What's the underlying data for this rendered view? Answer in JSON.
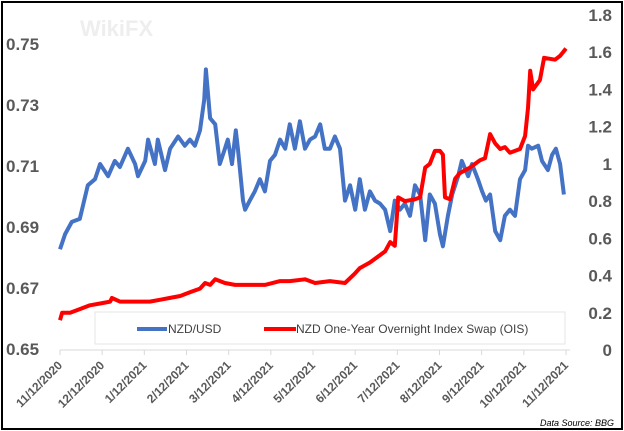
{
  "chart_data": {
    "type": "line",
    "title": "",
    "x_tick_labels": [
      "11/12/2020",
      "12/12/2020",
      "1/12/2021",
      "2/12/2021",
      "3/12/2021",
      "4/12/2021",
      "5/12/2021",
      "6/12/2021",
      "7/12/2021",
      "8/12/2021",
      "9/12/2021",
      "10/12/2021",
      "11/12/2021"
    ],
    "x_unit": "months since 11/12/2020",
    "y_left": {
      "ticks": [
        "0.65",
        "0.67",
        "0.69",
        "0.71",
        "0.73",
        "0.75"
      ],
      "range": [
        0.65,
        0.75
      ]
    },
    "y_right": {
      "ticks": [
        "0",
        "0.2",
        "0.4",
        "0.6",
        "0.8",
        "1",
        "1.2",
        "1.4",
        "1.6",
        "1.8"
      ],
      "range": [
        0,
        1.8
      ]
    },
    "legend_position": "bottom-inside",
    "series": [
      {
        "name": "NZD/USD",
        "axis": "left",
        "color": "#4472C4",
        "x": [
          0,
          0.12,
          0.28,
          0.47,
          0.66,
          0.83,
          0.95,
          1.14,
          1.3,
          1.42,
          1.61,
          1.78,
          1.85,
          2.02,
          2.09,
          2.25,
          2.32,
          2.49,
          2.61,
          2.8,
          2.96,
          3.08,
          3.2,
          3.32,
          3.42,
          3.46,
          3.56,
          3.68,
          3.79,
          3.91,
          3.98,
          4.08,
          4.17,
          4.22,
          4.34,
          4.39,
          4.5,
          4.62,
          4.74,
          4.86,
          4.98,
          5.1,
          5.22,
          5.34,
          5.45,
          5.57,
          5.69,
          5.81,
          5.93,
          6.05,
          6.17,
          6.28,
          6.4,
          6.52,
          6.64,
          6.76,
          6.88,
          7.0,
          7.11,
          7.23,
          7.35,
          7.47,
          7.59,
          7.71,
          7.83,
          7.94,
          8.06,
          8.18,
          8.3,
          8.42,
          8.54,
          8.66,
          8.77,
          8.89,
          9.01,
          9.08,
          9.2,
          9.3,
          9.44,
          9.53,
          9.68,
          9.77,
          9.91,
          10.01,
          10.1,
          10.2,
          10.32,
          10.44,
          10.55,
          10.67,
          10.79,
          10.91,
          11.03,
          11.1,
          11.19,
          11.34,
          11.43,
          11.57,
          11.67,
          11.76,
          11.86,
          11.95
        ],
        "y": [
          0.683,
          0.688,
          0.692,
          0.693,
          0.704,
          0.706,
          0.711,
          0.707,
          0.712,
          0.71,
          0.716,
          0.711,
          0.707,
          0.712,
          0.719,
          0.711,
          0.719,
          0.709,
          0.716,
          0.72,
          0.717,
          0.719,
          0.717,
          0.722,
          0.732,
          0.742,
          0.726,
          0.724,
          0.711,
          0.716,
          0.719,
          0.711,
          0.722,
          0.716,
          0.699,
          0.696,
          0.699,
          0.702,
          0.706,
          0.702,
          0.712,
          0.714,
          0.719,
          0.716,
          0.724,
          0.716,
          0.725,
          0.716,
          0.719,
          0.72,
          0.724,
          0.716,
          0.716,
          0.72,
          0.716,
          0.699,
          0.704,
          0.696,
          0.706,
          0.696,
          0.702,
          0.699,
          0.698,
          0.696,
          0.689,
          0.699,
          0.696,
          0.698,
          0.694,
          0.704,
          0.701,
          0.686,
          0.701,
          0.698,
          0.688,
          0.684,
          0.694,
          0.701,
          0.707,
          0.712,
          0.707,
          0.711,
          0.706,
          0.702,
          0.699,
          0.701,
          0.689,
          0.686,
          0.694,
          0.696,
          0.694,
          0.706,
          0.709,
          0.717,
          0.716,
          0.717,
          0.712,
          0.709,
          0.714,
          0.716,
          0.711,
          0.701
        ]
      },
      {
        "name": "NZD One-Year Overnight Index Swap (OIS)",
        "axis": "right",
        "color": "#FF0000",
        "x": [
          0,
          0.05,
          0.24,
          0.47,
          0.71,
          0.95,
          1.19,
          1.23,
          1.42,
          1.66,
          1.9,
          2.13,
          2.37,
          2.61,
          2.85,
          3.08,
          3.32,
          3.44,
          3.56,
          3.68,
          3.91,
          4.15,
          4.51,
          4.86,
          5.22,
          5.45,
          5.81,
          6.05,
          6.4,
          6.76,
          6.99,
          7.11,
          7.35,
          7.59,
          7.71,
          7.83,
          7.94,
          8.02,
          8.18,
          8.42,
          8.54,
          8.66,
          8.77,
          8.89,
          9.01,
          9.08,
          9.13,
          9.25,
          9.37,
          9.48,
          9.72,
          9.96,
          10.08,
          10.2,
          10.32,
          10.44,
          10.55,
          10.67,
          10.91,
          11.03,
          11.1,
          11.15,
          11.22,
          11.38,
          11.48,
          11.74,
          11.86,
          12.0
        ],
        "y": [
          0.16,
          0.2,
          0.2,
          0.22,
          0.24,
          0.25,
          0.26,
          0.28,
          0.26,
          0.26,
          0.26,
          0.26,
          0.27,
          0.28,
          0.29,
          0.31,
          0.33,
          0.36,
          0.35,
          0.38,
          0.36,
          0.35,
          0.35,
          0.35,
          0.37,
          0.37,
          0.38,
          0.36,
          0.37,
          0.36,
          0.41,
          0.44,
          0.47,
          0.51,
          0.53,
          0.58,
          0.56,
          0.82,
          0.8,
          0.81,
          0.82,
          0.98,
          1.0,
          1.07,
          1.07,
          1.05,
          0.82,
          0.81,
          0.92,
          0.95,
          0.98,
          1.02,
          1.03,
          1.16,
          1.11,
          1.08,
          1.09,
          1.06,
          1.08,
          1.15,
          1.3,
          1.5,
          1.4,
          1.45,
          1.57,
          1.56,
          1.58,
          1.62
        ]
      }
    ],
    "annotations": {
      "source": "Data Source: BBG",
      "watermark": "WikiFX"
    }
  }
}
